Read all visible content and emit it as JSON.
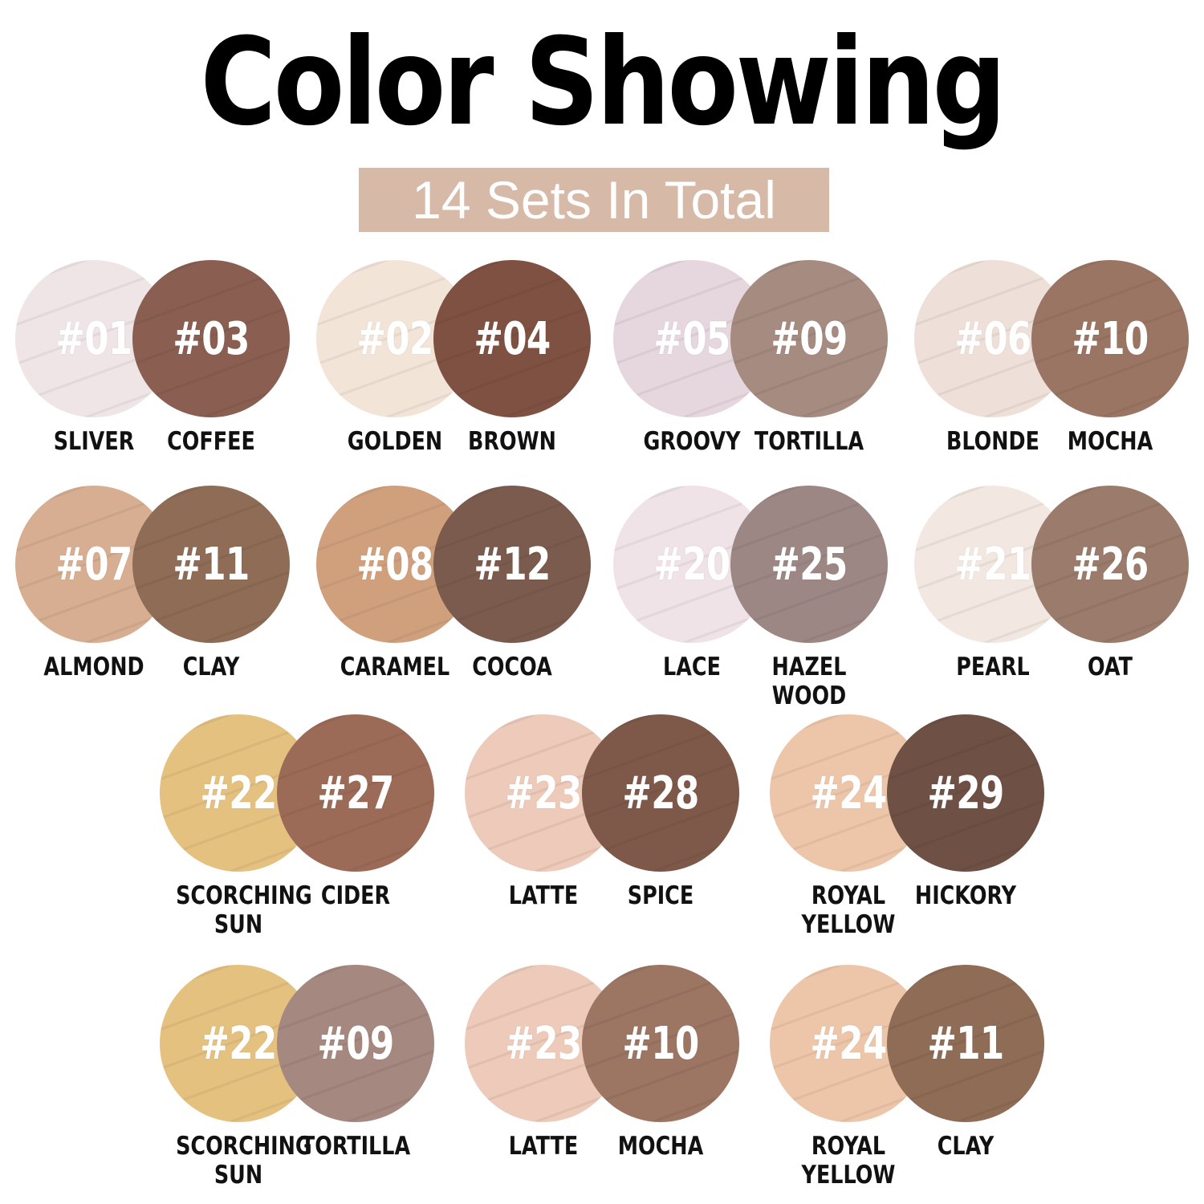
{
  "title": "Color Showing",
  "subtitle": "14 Sets In Total",
  "banner_color": "#d7b9a8",
  "sets": [
    [
      {
        "num": "#01",
        "name": "SLIVER",
        "color": "#efe5e7"
      },
      {
        "num": "#03",
        "name": "COFFEE",
        "color": "#8a5f52"
      }
    ],
    [
      {
        "num": "#02",
        "name": "GOLDEN",
        "color": "#f3e4d8"
      },
      {
        "num": "#04",
        "name": "BROWN",
        "color": "#7f5142"
      }
    ],
    [
      {
        "num": "#05",
        "name": "GROOVY",
        "color": "#e6d7df"
      },
      {
        "num": "#09",
        "name": "TORTILLA",
        "color": "#a58b80"
      }
    ],
    [
      {
        "num": "#06",
        "name": "BLONDE",
        "color": "#eee0d9"
      },
      {
        "num": "#10",
        "name": "MOCHA",
        "color": "#9b7563"
      }
    ],
    [
      {
        "num": "#07",
        "name": "ALMOND",
        "color": "#d7ae91"
      },
      {
        "num": "#11",
        "name": "CLAY",
        "color": "#8e6c56"
      }
    ],
    [
      {
        "num": "#08",
        "name": "CARAMEL",
        "color": "#d0a07d"
      },
      {
        "num": "#12",
        "name": "COCOA",
        "color": "#7b5b4e"
      }
    ],
    [
      {
        "num": "#20",
        "name": "LACE",
        "color": "#efe3e7"
      },
      {
        "num": "#25",
        "name": "HAZEL WOOD",
        "color": "#9c8785"
      }
    ],
    [
      {
        "num": "#21",
        "name": "PEARL",
        "color": "#f2e8e1"
      },
      {
        "num": "#26",
        "name": "OAT",
        "color": "#9b7b6b"
      }
    ],
    [
      {
        "num": "#22",
        "name": "SCORCHING SUN",
        "color": "#e5c17f"
      },
      {
        "num": "#27",
        "name": "CIDER",
        "color": "#9c6b57"
      }
    ],
    [
      {
        "num": "#23",
        "name": "LATTE",
        "color": "#edcab9"
      },
      {
        "num": "#28",
        "name": "SPICE",
        "color": "#7e5949"
      }
    ],
    [
      {
        "num": "#24",
        "name": "ROYAL YELLOW",
        "color": "#edc6a9"
      },
      {
        "num": "#29",
        "name": "HICKORY",
        "color": "#6f5045"
      }
    ],
    [
      {
        "num": "#22",
        "name": "SCORCHING SUN",
        "color": "#e5c17f"
      },
      {
        "num": "#09",
        "name": "TORTILLA",
        "color": "#a5887f"
      }
    ],
    [
      {
        "num": "#23",
        "name": "LATTE",
        "color": "#edcab9"
      },
      {
        "num": "#10",
        "name": "MOCHA",
        "color": "#9c7563"
      }
    ],
    [
      {
        "num": "#24",
        "name": "ROYAL YELLOW",
        "color": "#edc6a9"
      },
      {
        "num": "#11",
        "name": "CLAY",
        "color": "#8e6c56"
      }
    ]
  ]
}
